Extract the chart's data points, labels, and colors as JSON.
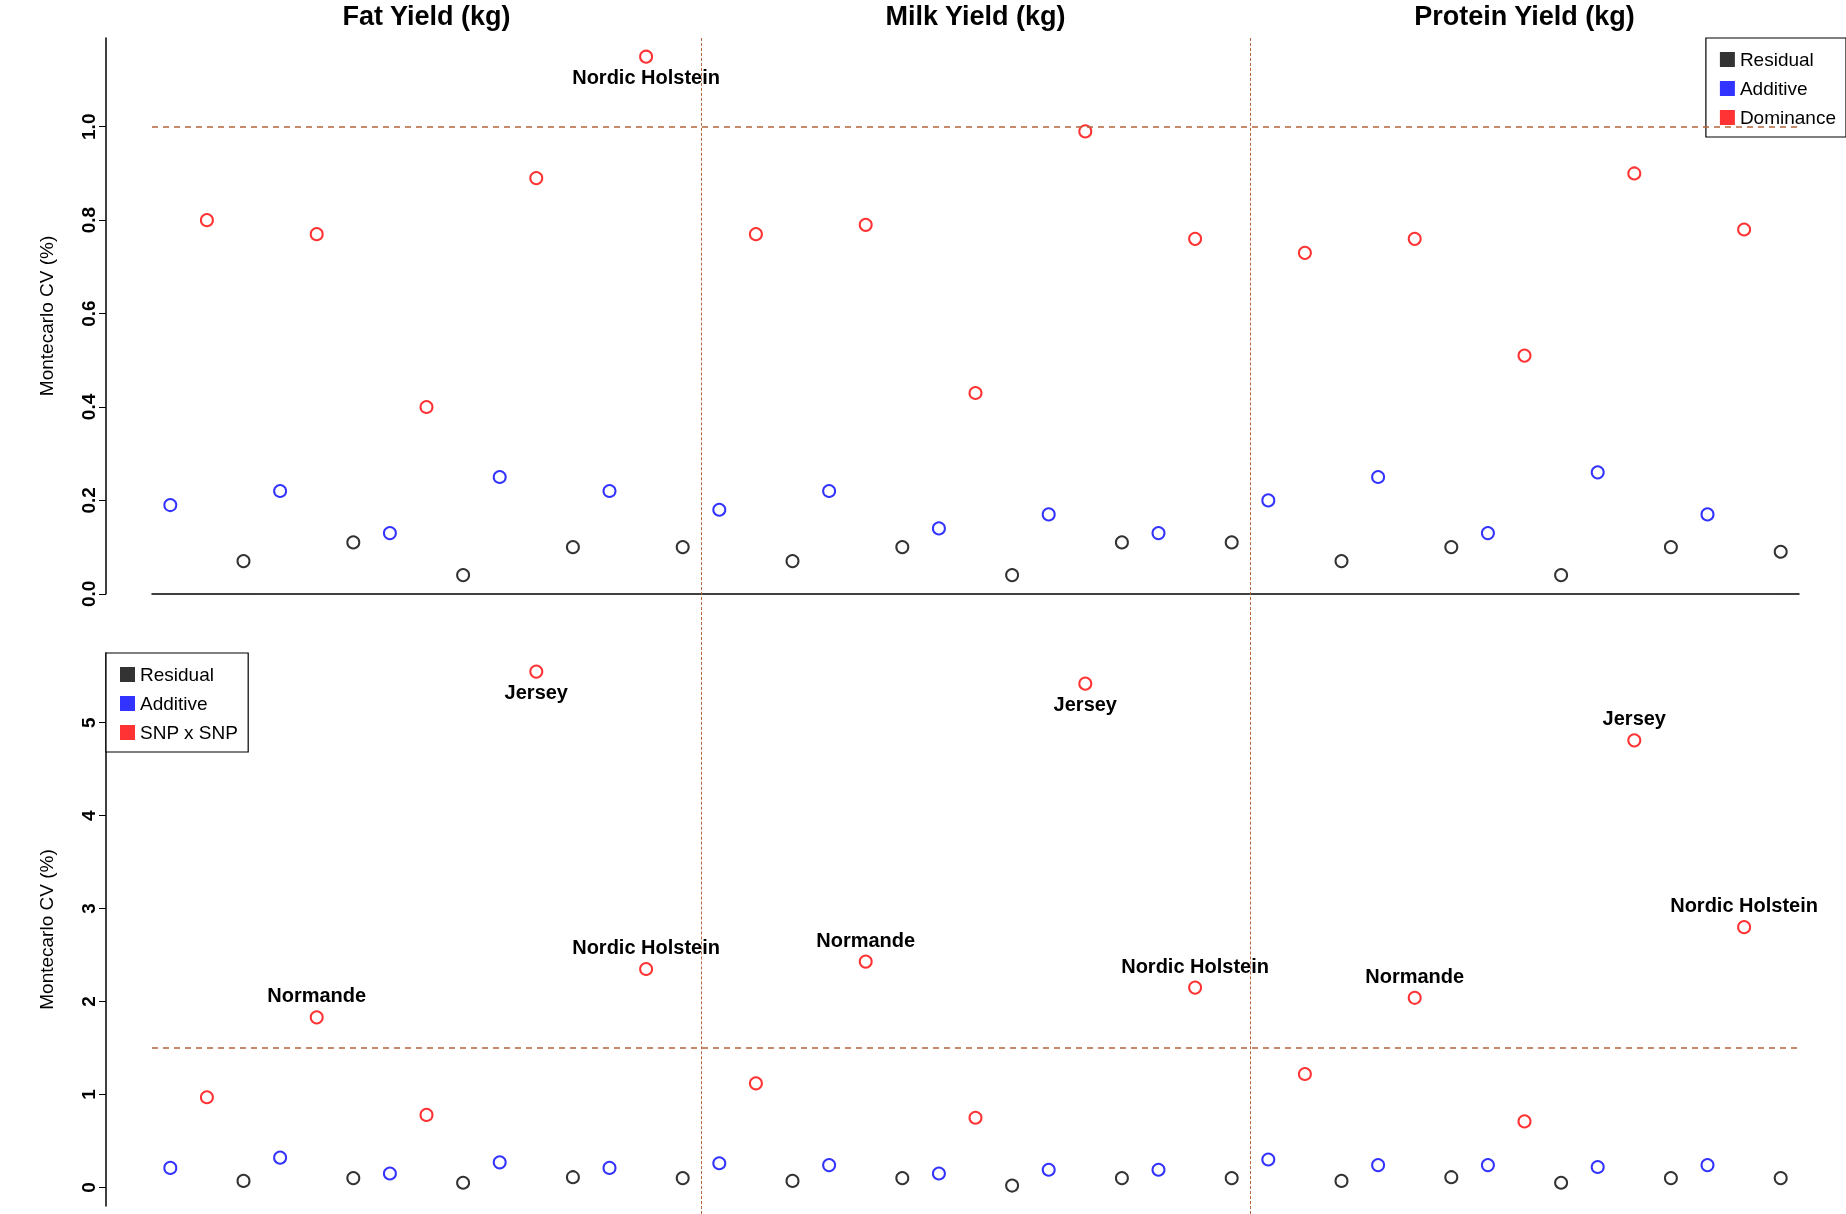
{
  "chart_data": [
    {
      "type": "scatter",
      "ylabel": "Montecarlo CV (%)",
      "categories": [
        null,
        null,
        null,
        null,
        null,
        null,
        null,
        null,
        null,
        null,
        null,
        null,
        null,
        null,
        null,
        null,
        null,
        null,
        null,
        null,
        null,
        null,
        null,
        null,
        null,
        null,
        null,
        null,
        null,
        null,
        null,
        null,
        null,
        null,
        null,
        null,
        null,
        null,
        null,
        null,
        null,
        null,
        null,
        null,
        null
      ],
      "ylim": [
        0,
        1.19
      ],
      "yticks": [
        {
          "value": 0,
          "label": "0.0"
        },
        {
          "value": 0.2,
          "label": "0.2"
        },
        {
          "value": 0.4,
          "label": "0.4"
        },
        {
          "value": 0.6,
          "label": "0.6"
        },
        {
          "value": 0.8,
          "label": "0.8"
        },
        {
          "value": 1,
          "label": "1.0"
        }
      ],
      "marker": "circle",
      "grid": false,
      "legend": "top right",
      "series": [
        {
          "name": "Residual",
          "color": "#000000",
          "values": [
            null,
            null,
            0.07,
            null,
            null,
            0.11,
            null,
            null,
            0.04,
            null,
            null,
            0.1,
            null,
            null,
            0.1,
            null,
            null,
            0.07,
            null,
            null,
            0.1,
            null,
            null,
            0.04,
            null,
            null,
            0.11,
            null,
            null,
            0.11,
            null,
            null,
            0.07,
            null,
            null,
            0.1,
            null,
            null,
            0.04,
            null,
            null,
            0.1,
            null,
            null,
            0.09
          ]
        },
        {
          "name": "Additive",
          "color": "#0000ff",
          "values": [
            0.19,
            null,
            null,
            0.22,
            null,
            null,
            0.13,
            null,
            null,
            0.25,
            null,
            null,
            0.22,
            null,
            null,
            0.18,
            null,
            null,
            0.22,
            null,
            null,
            0.14,
            null,
            null,
            0.17,
            null,
            null,
            0.13,
            null,
            null,
            0.2,
            null,
            null,
            0.25,
            null,
            null,
            0.13,
            null,
            null,
            0.26,
            null,
            null,
            0.17,
            null,
            null
          ]
        },
        {
          "name": "Dominance",
          "color": "#ff0000",
          "values": [
            null,
            0.8,
            null,
            null,
            0.77,
            null,
            null,
            0.4,
            null,
            null,
            0.89,
            null,
            null,
            1.15,
            null,
            null,
            0.77,
            null,
            null,
            0.79,
            null,
            null,
            0.43,
            null,
            null,
            0.99,
            null,
            null,
            0.76,
            null,
            null,
            0.73,
            null,
            null,
            0.76,
            null,
            null,
            0.51,
            null,
            null,
            0.9,
            null,
            null,
            0.78,
            null
          ]
        }
      ],
      "ref_lines": [
        {
          "axis": "y",
          "value": 1,
          "color": "#b5653d",
          "line_style": "dashed"
        }
      ],
      "annotations": [
        "Fat Yield (kg)",
        "Milk Yield (kg)",
        "Protein Yield (kg)",
        {
          "text": "Nordic Holstein",
          "y": 1.15
        }
      ]
    },
    {
      "type": "scatter",
      "ylabel": "Montecarlo CV (%)",
      "categories": [
        null,
        null,
        null,
        null,
        null,
        null,
        null,
        null,
        null,
        null,
        null,
        null,
        null,
        null,
        null,
        null,
        null,
        null,
        null,
        null,
        null,
        null,
        null,
        null,
        null,
        null,
        null,
        null,
        null,
        null,
        null,
        null,
        null,
        null,
        null,
        null,
        null,
        null,
        null,
        null,
        null,
        null,
        null,
        null,
        null
      ],
      "ylim": [
        -0.2,
        5.75
      ],
      "yticks": [
        0,
        1,
        2,
        3,
        4,
        5
      ],
      "marker": "circle",
      "grid": false,
      "legend": "top left",
      "series": [
        {
          "name": "Residual",
          "color": "#000000",
          "values": [
            null,
            null,
            0.07,
            null,
            null,
            0.1,
            null,
            null,
            0.05,
            null,
            null,
            0.11,
            null,
            null,
            0.1,
            null,
            null,
            0.07,
            null,
            null,
            0.1,
            null,
            null,
            0.02,
            null,
            null,
            0.1,
            null,
            null,
            0.1,
            null,
            null,
            0.07,
            null,
            null,
            0.11,
            null,
            null,
            0.05,
            null,
            null,
            0.1,
            null,
            null,
            0.1
          ]
        },
        {
          "name": "Additive",
          "color": "#0000ff",
          "values": [
            0.21,
            null,
            null,
            0.32,
            null,
            null,
            0.15,
            null,
            null,
            0.27,
            null,
            null,
            0.21,
            null,
            null,
            0.26,
            null,
            null,
            0.24,
            null,
            null,
            0.15,
            null,
            null,
            0.19,
            null,
            null,
            0.19,
            null,
            null,
            0.3,
            null,
            null,
            0.24,
            null,
            null,
            0.24,
            null,
            null,
            0.22,
            null,
            null,
            0.24,
            null,
            null
          ]
        },
        {
          "name": "SNP x SNP",
          "color": "#ff0000",
          "values": [
            null,
            0.97,
            null,
            null,
            1.83,
            null,
            null,
            0.78,
            null,
            null,
            5.55,
            null,
            null,
            2.35,
            null,
            null,
            1.12,
            null,
            null,
            2.43,
            null,
            null,
            0.75,
            null,
            null,
            5.42,
            null,
            null,
            2.15,
            null,
            null,
            1.22,
            null,
            null,
            2.04,
            null,
            null,
            0.71,
            null,
            null,
            4.81,
            null,
            null,
            2.8,
            null
          ]
        }
      ],
      "ref_lines": [
        {
          "axis": "y",
          "value": 1.5,
          "color": "#b5653d",
          "line_style": "dashed"
        }
      ],
      "annotations": [
        {
          "text": "Normande",
          "y": 1.83
        },
        {
          "text": "Jersey",
          "y": 5.55
        },
        {
          "text": "Nordic Holstein",
          "y": 2.35
        },
        {
          "text": "Normande",
          "y": 2.43
        },
        {
          "text": "Jersey",
          "y": 5.42
        },
        {
          "text": "Nordic Holstein",
          "y": 2.15
        },
        {
          "text": "Normande",
          "y": 2.04
        },
        {
          "text": "Jersey",
          "y": 4.81
        },
        {
          "text": "Nordic Holstein",
          "y": 2.8
        }
      ]
    }
  ]
}
